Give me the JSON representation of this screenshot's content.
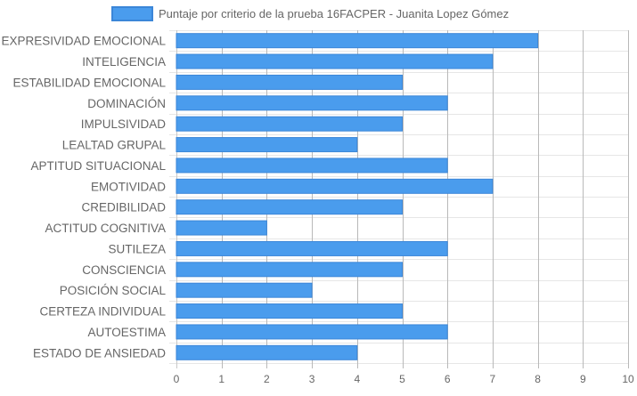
{
  "chart_data": {
    "type": "bar",
    "orientation": "horizontal",
    "categories": [
      "EXPRESIVIDAD EMOCIONAL",
      "INTELIGENCIA",
      "ESTABILIDAD EMOCIONAL",
      "DOMINACIÓN",
      "IMPULSIVIDAD",
      "LEALTAD GRUPAL",
      "APTITUD SITUACIONAL",
      "EMOTIVIDAD",
      "CREDIBILIDAD",
      "ACTITUD COGNITIVA",
      "SUTILEZA",
      "CONSCIENCIA",
      "POSICIÓN SOCIAL",
      "CERTEZA INDIVIDUAL",
      "AUTOESTIMA",
      "ESTADO DE ANSIEDAD"
    ],
    "series": [
      {
        "name": "Puntaje por criterio de la prueba 16FACPER - Juanita Lopez Gómez",
        "values": [
          8,
          7,
          5,
          6,
          5,
          4,
          6,
          7,
          5,
          2,
          6,
          5,
          3,
          5,
          6,
          4
        ]
      }
    ],
    "xlim": [
      0,
      10
    ],
    "x_ticks": [
      0,
      1,
      2,
      3,
      4,
      5,
      6,
      7,
      8,
      9,
      10
    ],
    "grid": true,
    "legend_position": "top",
    "colors": {
      "bar_fill": "#4a9ced",
      "bar_stroke": "#3b86d8",
      "grid": "#e6e6e6",
      "grid_vertical": "#b9b9b9",
      "text": "#666666"
    }
  }
}
